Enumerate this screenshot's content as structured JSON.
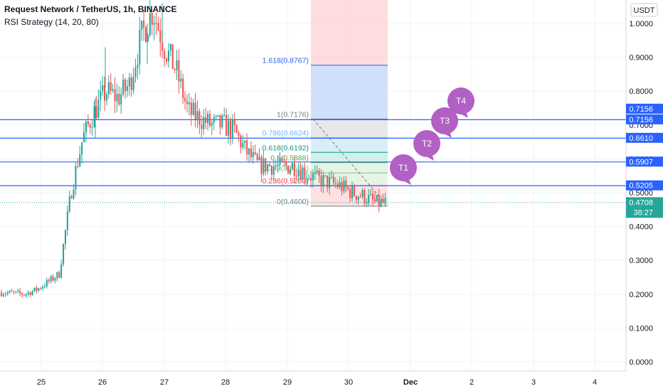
{
  "header": {
    "title": "Request Network / TetherUS, 1h, BINANCE",
    "study": "RSI Strategy (14, 20, 80)"
  },
  "currency_badge": "USDT",
  "colors": {
    "up": "#26a69a",
    "down": "#ef5350",
    "hline": "#2962ff",
    "label_blue": "#2962ff",
    "label_green": "#26a69a"
  },
  "chart_data": {
    "type": "candlestick",
    "y_ticks": [
      "1.0000",
      "0.9000",
      "0.8000",
      "0.7000",
      "0.6000",
      "0.5000",
      "0.4000",
      "0.3000",
      "0.2000",
      "0.1000",
      "0.0000"
    ],
    "y_tick_values": [
      1.0,
      0.9,
      0.8,
      0.7,
      0.6,
      0.5,
      0.4,
      0.3,
      0.2,
      0.1,
      0.0
    ],
    "x_ticks": [
      "25",
      "26",
      "27",
      "28",
      "29",
      "30",
      "Dec",
      "2",
      "3",
      "4"
    ],
    "ohlc_anchor_closes": [
      0.205,
      0.203,
      0.2,
      0.212,
      0.235,
      0.26,
      0.5,
      0.66,
      0.74,
      0.8,
      0.78,
      0.82,
      0.96,
      1.04,
      0.93,
      0.86,
      0.74,
      0.72,
      0.7,
      0.7,
      0.68,
      0.62,
      0.58,
      0.58,
      0.575,
      0.58,
      0.56,
      0.54,
      0.53,
      0.52,
      0.5,
      0.49,
      0.47,
      0.47
    ],
    "horizontal_lines": [
      0.7156,
      0.661,
      0.5907,
      0.5205
    ],
    "current_price_line": 0.4708,
    "price_labels": [
      {
        "text": "0.7156",
        "value": 0.7156
      },
      {
        "text": "0.7156",
        "value": 0.7156
      },
      {
        "text": "0.6610",
        "value": 0.661
      },
      {
        "text": "0.5907",
        "value": 0.5907
      },
      {
        "text": "0.5205",
        "value": 0.5205
      }
    ],
    "current_label": {
      "price": "0.4708",
      "countdown": "38:27"
    },
    "fib_levels": [
      {
        "ratio": "1.618",
        "label": "1.618(0.8767)",
        "value": 0.8767,
        "color": "#2962ff"
      },
      {
        "ratio": "1",
        "label": "1(0.7176)",
        "value": 0.7176,
        "color": "#787b86"
      },
      {
        "ratio": "0.786",
        "label": "0.786(0.6624)",
        "value": 0.6624,
        "color": "#64b5f6"
      },
      {
        "ratio": "0.618",
        "label": "0.618(0.6192)",
        "value": 0.6192,
        "color": "#089981"
      },
      {
        "ratio": "0.5",
        "label": "0.5(0.5888)",
        "value": 0.5888,
        "color": "#4caf50"
      },
      {
        "ratio": "0.382",
        "label": "0.382(0.5584)",
        "value": 0.5584,
        "color": "#81c784"
      },
      {
        "ratio": "0.236",
        "label": "0.236(0.5208)",
        "value": 0.5208,
        "color": "#f23645"
      },
      {
        "ratio": "0",
        "label": "0(0.4600)",
        "value": 0.46,
        "color": "#787b86"
      }
    ],
    "fib_top_zone_upper": 1.09,
    "targets": [
      "T1",
      "T2",
      "T3",
      "T4"
    ],
    "grid": true
  }
}
